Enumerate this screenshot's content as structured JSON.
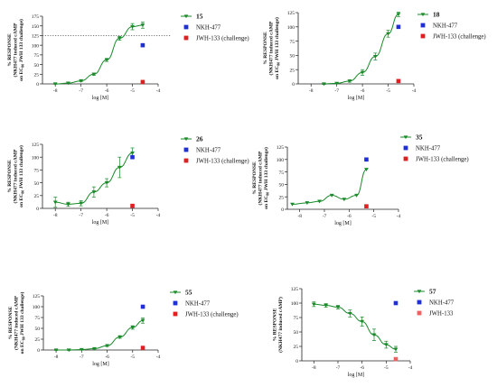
{
  "colors": {
    "curve": "#1a8a2a",
    "marker": "#1a8a2a",
    "nkh": "#1f2fd6",
    "jwh": "#e02020",
    "jwh_light": "#f06060",
    "axis": "#222222",
    "dotted": "#666666"
  },
  "chart_data": [
    {
      "type": "line",
      "xlabel": "log [M]",
      "ylabel": [
        "% RESPONSE",
        "(NKH477 induced cAMP",
        "on EC",
        "JWH 133 challenge)"
      ],
      "ylabel_sub": "80",
      "xlim": [
        -8.5,
        -4
      ],
      "ylim": [
        0,
        175
      ],
      "xticks": [
        "-8",
        "-7",
        "-6",
        "-5",
        "-4"
      ],
      "yticks": [
        "0",
        "25",
        "50",
        "75",
        "100",
        "125",
        "150",
        "175"
      ],
      "reference_line_y": 125,
      "legend": [
        "15",
        "NKH-477",
        "JWH-133  (challenge)"
      ],
      "series": [
        {
          "name": "15",
          "x": [
            -8,
            -7.5,
            -7,
            -6.5,
            -6,
            -5.5,
            -5,
            -4.6
          ],
          "y": [
            0,
            2,
            8,
            25,
            62,
            118,
            148,
            152
          ],
          "err": [
            1,
            1,
            2,
            3,
            4,
            5,
            8,
            8
          ]
        },
        {
          "name": "NKH-477",
          "x": [
            -4.6
          ],
          "y": [
            100
          ]
        },
        {
          "name": "JWH-133  (challenge)",
          "x": [
            -4.6
          ],
          "y": [
            5
          ]
        }
      ]
    },
    {
      "type": "line",
      "xlabel": "log [M]",
      "ylabel": [
        "% RESPONSE",
        "(NKH477 induced cAMP",
        "on EC",
        "JWH 133 challenge)"
      ],
      "ylabel_sub": "80",
      "xlim": [
        -8.5,
        -4
      ],
      "ylim": [
        0,
        125
      ],
      "xticks": [
        "-8",
        "-7",
        "-6",
        "-5",
        "-4"
      ],
      "yticks": [
        "0",
        "25",
        "50",
        "75",
        "100",
        "125"
      ],
      "legend": [
        "18",
        "NKH-477",
        "JWH-133  (challenge)"
      ],
      "series": [
        {
          "name": "18",
          "x": [
            -7.5,
            -7,
            -6.5,
            -6,
            -5.5,
            -5,
            -4.6
          ],
          "y": [
            0,
            1,
            5,
            20,
            48,
            88,
            122
          ],
          "err": [
            1,
            1,
            2,
            5,
            6,
            6,
            4
          ]
        },
        {
          "name": "NKH-477",
          "x": [
            -4.6
          ],
          "y": [
            100
          ]
        },
        {
          "name": "JWH-133  (challenge)",
          "x": [
            -4.6
          ],
          "y": [
            5
          ]
        }
      ]
    },
    {
      "type": "line",
      "xlabel": "log [M]",
      "ylabel": [
        "% RESPONSE",
        "(NKH477 induced cAMP",
        "on EC",
        "JWH 133 challenge)"
      ],
      "ylabel_sub": "80",
      "xlim": [
        -8.5,
        -4
      ],
      "ylim": [
        0,
        125
      ],
      "xticks": [
        "-8",
        "-7",
        "-6",
        "-5",
        "-4"
      ],
      "yticks": [
        "0",
        "25",
        "50",
        "75",
        "100",
        "125"
      ],
      "legend": [
        "26",
        "NKH-477",
        "JWH-133  (challenge)"
      ],
      "series": [
        {
          "name": "26",
          "x": [
            -8,
            -7.5,
            -7,
            -6.5,
            -6,
            -5.5,
            -5
          ],
          "y": [
            12,
            8,
            10,
            32,
            50,
            80,
            108
          ],
          "err": [
            10,
            4,
            5,
            10,
            8,
            20,
            10
          ]
        },
        {
          "name": "NKH-477",
          "x": [
            -5
          ],
          "y": [
            100
          ]
        },
        {
          "name": "JWH-133  (challenge)",
          "x": [
            -5
          ],
          "y": [
            5
          ]
        }
      ]
    },
    {
      "type": "line",
      "xlabel": "log [M]",
      "ylabel": [
        "% RESPONSE",
        "(NKH477 induced cAMP",
        "on EC",
        "JWH 133 challenge)"
      ],
      "ylabel_sub": "80",
      "xlim": [
        -8.5,
        -4
      ],
      "ylim": [
        0,
        125
      ],
      "xticks": [
        "-8",
        "-7",
        "-6",
        "-5",
        "-4"
      ],
      "yticks": [
        "0",
        "25",
        "50",
        "75",
        "100",
        "125"
      ],
      "legend": [
        "35",
        "NKH-477",
        "JWH-133  (challenge)"
      ],
      "series": [
        {
          "name": "35",
          "x": [
            -8.3,
            -7.7,
            -7.2,
            -6.7,
            -6.2,
            -5.7,
            -5.3
          ],
          "y": [
            10,
            13,
            16,
            28,
            20,
            28,
            80
          ]
        },
        {
          "name": "NKH-477",
          "x": [
            -5.3
          ],
          "y": [
            100
          ]
        },
        {
          "name": "JWH-133  (challenge)",
          "x": [
            -5.3
          ],
          "y": [
            6
          ]
        }
      ]
    },
    {
      "type": "line",
      "xlabel": "log [M]",
      "ylabel": [
        "% RESPONSE",
        "(NKH477 induced cAMP",
        "on EC",
        "JWH 133 challenge)"
      ],
      "ylabel_sub": "80",
      "xlim": [
        -8.5,
        -4
      ],
      "ylim": [
        0,
        125
      ],
      "xticks": [
        "-8",
        "-7",
        "-6",
        "-5",
        "-4"
      ],
      "yticks": [
        "0",
        "25",
        "50",
        "75",
        "100",
        "125"
      ],
      "legend": [
        "55",
        "NKH-477",
        "JWH-133  (challenge)"
      ],
      "series": [
        {
          "name": "55",
          "x": [
            -8,
            -7.5,
            -7,
            -6.5,
            -6,
            -5.5,
            -5,
            -4.6
          ],
          "y": [
            0,
            0,
            1,
            3,
            10,
            30,
            52,
            68
          ],
          "err": [
            1,
            1,
            1,
            1,
            2,
            3,
            4,
            6
          ]
        },
        {
          "name": "NKH-477",
          "x": [
            -4.6
          ],
          "y": [
            100
          ]
        },
        {
          "name": "JWH-133  (challenge)",
          "x": [
            -4.6
          ],
          "y": [
            5
          ]
        }
      ]
    },
    {
      "type": "line",
      "xlabel": "log [M]",
      "ylabel": [
        "% RESPONSE",
        "(NKH477 induced cAMP)"
      ],
      "ylabel_sub": "",
      "xlim": [
        -8.5,
        -4
      ],
      "ylim": [
        0,
        125
      ],
      "xticks": [
        "-8",
        "-7",
        "-6",
        "-5",
        "-4"
      ],
      "yticks": [
        "0",
        "25",
        "50",
        "75",
        "100",
        "125"
      ],
      "legend": [
        "57",
        "NKH-477",
        "JWH-133"
      ],
      "series": [
        {
          "name": "57",
          "x": [
            -8,
            -7.5,
            -7,
            -6.5,
            -6,
            -5.5,
            -5,
            -4.6
          ],
          "y": [
            98,
            96,
            93,
            82,
            68,
            45,
            28,
            20
          ],
          "err": [
            4,
            3,
            3,
            6,
            8,
            10,
            6,
            5
          ],
          "decreasing": true
        },
        {
          "name": "NKH-477",
          "x": [
            -4.6
          ],
          "y": [
            100
          ]
        },
        {
          "name": "JWH-133",
          "x": [
            -4.6
          ],
          "y": [
            3
          ]
        }
      ]
    }
  ]
}
